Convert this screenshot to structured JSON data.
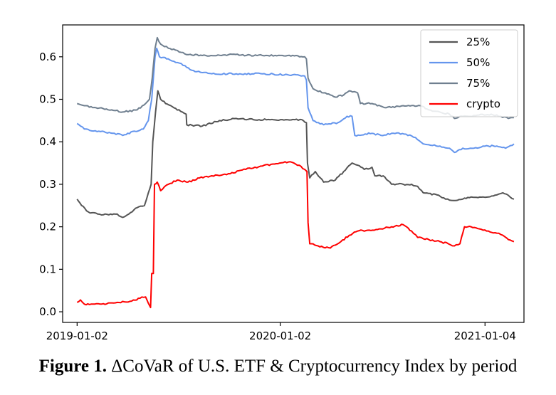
{
  "caption": {
    "label": "Figure 1.",
    "text": "ΔCoVaR of U.S. ETF & Cryptocurrency Index by period"
  },
  "chart_data": {
    "type": "line",
    "x_type": "date",
    "xlim": [
      "2018-12-07",
      "2021-03-15"
    ],
    "ylim": [
      -0.025,
      0.675
    ],
    "x_ticks": [
      {
        "value": "2019-01-02",
        "label": "2019-01-02"
      },
      {
        "value": "2020-01-02",
        "label": "2020-01-02"
      },
      {
        "value": "2021-01-04",
        "label": "2021-01-04"
      }
    ],
    "y_ticks": [
      {
        "value": 0.0,
        "label": "0.0"
      },
      {
        "value": 0.1,
        "label": "0.1"
      },
      {
        "value": 0.2,
        "label": "0.2"
      },
      {
        "value": 0.3,
        "label": "0.3"
      },
      {
        "value": 0.4,
        "label": "0.4"
      },
      {
        "value": 0.5,
        "label": "0.5"
      },
      {
        "value": 0.6,
        "label": "0.6"
      }
    ],
    "legend_position": "top-right",
    "grid": false,
    "series": [
      {
        "name": "25%",
        "color": "#555555",
        "points": [
          [
            "2019-01-02",
            0.265
          ],
          [
            "2019-01-10",
            0.25
          ],
          [
            "2019-01-22",
            0.235
          ],
          [
            "2019-02-08",
            0.23
          ],
          [
            "2019-02-28",
            0.228
          ],
          [
            "2019-03-15",
            0.23
          ],
          [
            "2019-03-25",
            0.222
          ],
          [
            "2019-04-05",
            0.23
          ],
          [
            "2019-04-20",
            0.245
          ],
          [
            "2019-05-03",
            0.25
          ],
          [
            "2019-05-10",
            0.28
          ],
          [
            "2019-05-15",
            0.3
          ],
          [
            "2019-05-18",
            0.4
          ],
          [
            "2019-05-23",
            0.47
          ],
          [
            "2019-05-27",
            0.52
          ],
          [
            "2019-06-01",
            0.5
          ],
          [
            "2019-06-10",
            0.49
          ],
          [
            "2019-06-25",
            0.48
          ],
          [
            "2019-07-10",
            0.47
          ],
          [
            "2019-07-17",
            0.465
          ],
          [
            "2019-07-18",
            0.44
          ],
          [
            "2019-08-15",
            0.437
          ],
          [
            "2019-09-15",
            0.45
          ],
          [
            "2019-10-15",
            0.455
          ],
          [
            "2019-11-15",
            0.452
          ],
          [
            "2019-12-15",
            0.452
          ],
          [
            "2020-01-15",
            0.452
          ],
          [
            "2020-02-10",
            0.452
          ],
          [
            "2020-02-18",
            0.445
          ],
          [
            "2020-02-20",
            0.35
          ],
          [
            "2020-02-24",
            0.315
          ],
          [
            "2020-03-05",
            0.33
          ],
          [
            "2020-03-20",
            0.305
          ],
          [
            "2020-04-10",
            0.31
          ],
          [
            "2020-04-25",
            0.33
          ],
          [
            "2020-05-10",
            0.35
          ],
          [
            "2020-05-20",
            0.345
          ],
          [
            "2020-06-01",
            0.335
          ],
          [
            "2020-06-15",
            0.34
          ],
          [
            "2020-06-20",
            0.32
          ],
          [
            "2020-07-05",
            0.32
          ],
          [
            "2020-07-20",
            0.3
          ],
          [
            "2020-08-10",
            0.3
          ],
          [
            "2020-08-25",
            0.3
          ],
          [
            "2020-09-05",
            0.295
          ],
          [
            "2020-09-15",
            0.28
          ],
          [
            "2020-10-10",
            0.275
          ],
          [
            "2020-10-25",
            0.265
          ],
          [
            "2020-11-05",
            0.262
          ],
          [
            "2020-11-25",
            0.265
          ],
          [
            "2020-12-10",
            0.27
          ],
          [
            "2021-01-10",
            0.27
          ],
          [
            "2021-01-25",
            0.275
          ],
          [
            "2021-02-05",
            0.28
          ],
          [
            "2021-02-18",
            0.27
          ],
          [
            "2021-02-25",
            0.265
          ]
        ]
      },
      {
        "name": "50%",
        "color": "#6495ed",
        "points": [
          [
            "2019-01-02",
            0.443
          ],
          [
            "2019-01-15",
            0.43
          ],
          [
            "2019-02-10",
            0.425
          ],
          [
            "2019-03-10",
            0.42
          ],
          [
            "2019-03-25",
            0.415
          ],
          [
            "2019-04-15",
            0.425
          ],
          [
            "2019-05-01",
            0.43
          ],
          [
            "2019-05-10",
            0.45
          ],
          [
            "2019-05-16",
            0.5
          ],
          [
            "2019-05-22",
            0.6
          ],
          [
            "2019-05-25",
            0.62
          ],
          [
            "2019-05-30",
            0.6
          ],
          [
            "2019-06-15",
            0.595
          ],
          [
            "2019-07-05",
            0.585
          ],
          [
            "2019-07-18",
            0.575
          ],
          [
            "2019-08-05",
            0.565
          ],
          [
            "2019-09-01",
            0.56
          ],
          [
            "2019-10-15",
            0.56
          ],
          [
            "2019-12-01",
            0.56
          ],
          [
            "2020-01-15",
            0.558
          ],
          [
            "2020-02-15",
            0.555
          ],
          [
            "2020-02-18",
            0.545
          ],
          [
            "2020-02-21",
            0.48
          ],
          [
            "2020-03-01",
            0.45
          ],
          [
            "2020-03-20",
            0.44
          ],
          [
            "2020-04-15",
            0.445
          ],
          [
            "2020-05-01",
            0.46
          ],
          [
            "2020-05-10",
            0.46
          ],
          [
            "2020-05-15",
            0.415
          ],
          [
            "2020-06-15",
            0.42
          ],
          [
            "2020-07-01",
            0.415
          ],
          [
            "2020-07-20",
            0.42
          ],
          [
            "2020-08-15",
            0.418
          ],
          [
            "2020-09-01",
            0.41
          ],
          [
            "2020-09-15",
            0.395
          ],
          [
            "2020-10-15",
            0.39
          ],
          [
            "2020-11-01",
            0.385
          ],
          [
            "2020-11-10",
            0.375
          ],
          [
            "2020-11-25",
            0.385
          ],
          [
            "2020-12-15",
            0.385
          ],
          [
            "2021-01-10",
            0.39
          ],
          [
            "2021-01-25",
            0.39
          ],
          [
            "2021-02-10",
            0.385
          ],
          [
            "2021-02-25",
            0.395
          ]
        ]
      },
      {
        "name": "75%",
        "color": "#6f7f8f",
        "points": [
          [
            "2019-01-02",
            0.49
          ],
          [
            "2019-01-15",
            0.485
          ],
          [
            "2019-02-05",
            0.48
          ],
          [
            "2019-03-05",
            0.475
          ],
          [
            "2019-03-25",
            0.47
          ],
          [
            "2019-04-20",
            0.475
          ],
          [
            "2019-05-05",
            0.49
          ],
          [
            "2019-05-12",
            0.5
          ],
          [
            "2019-05-17",
            0.55
          ],
          [
            "2019-05-22",
            0.62
          ],
          [
            "2019-05-26",
            0.645
          ],
          [
            "2019-06-01",
            0.63
          ],
          [
            "2019-06-15",
            0.62
          ],
          [
            "2019-07-01",
            0.615
          ],
          [
            "2019-07-18",
            0.605
          ],
          [
            "2019-08-15",
            0.603
          ],
          [
            "2019-10-01",
            0.605
          ],
          [
            "2019-12-01",
            0.603
          ],
          [
            "2020-01-15",
            0.603
          ],
          [
            "2020-02-15",
            0.6
          ],
          [
            "2020-02-18",
            0.595
          ],
          [
            "2020-02-21",
            0.55
          ],
          [
            "2020-03-01",
            0.525
          ],
          [
            "2020-03-20",
            0.515
          ],
          [
            "2020-04-10",
            0.505
          ],
          [
            "2020-04-25",
            0.51
          ],
          [
            "2020-05-05",
            0.52
          ],
          [
            "2020-05-20",
            0.515
          ],
          [
            "2020-05-25",
            0.49
          ],
          [
            "2020-06-15",
            0.49
          ],
          [
            "2020-07-10",
            0.48
          ],
          [
            "2020-08-10",
            0.485
          ],
          [
            "2020-09-10",
            0.485
          ],
          [
            "2020-09-25",
            0.475
          ],
          [
            "2020-10-15",
            0.47
          ],
          [
            "2020-11-01",
            0.465
          ],
          [
            "2020-11-10",
            0.455
          ],
          [
            "2020-11-25",
            0.46
          ],
          [
            "2020-12-15",
            0.462
          ],
          [
            "2021-01-15",
            0.465
          ],
          [
            "2021-02-01",
            0.46
          ],
          [
            "2021-02-15",
            0.455
          ],
          [
            "2021-02-25",
            0.457
          ]
        ]
      },
      {
        "name": "crypto",
        "color": "#ff0000",
        "points": [
          [
            "2019-01-02",
            0.022
          ],
          [
            "2019-01-08",
            0.028
          ],
          [
            "2019-01-15",
            0.018
          ],
          [
            "2019-02-15",
            0.018
          ],
          [
            "2019-03-15",
            0.022
          ],
          [
            "2019-04-10",
            0.025
          ],
          [
            "2019-04-25",
            0.032
          ],
          [
            "2019-05-05",
            0.035
          ],
          [
            "2019-05-10",
            0.02
          ],
          [
            "2019-05-14",
            0.01
          ],
          [
            "2019-05-16",
            0.09
          ],
          [
            "2019-05-19",
            0.09
          ],
          [
            "2019-05-21",
            0.3
          ],
          [
            "2019-05-26",
            0.305
          ],
          [
            "2019-06-01",
            0.285
          ],
          [
            "2019-06-15",
            0.3
          ],
          [
            "2019-07-01",
            0.31
          ],
          [
            "2019-07-20",
            0.305
          ],
          [
            "2019-08-10",
            0.315
          ],
          [
            "2019-09-01",
            0.32
          ],
          [
            "2019-10-01",
            0.325
          ],
          [
            "2019-11-01",
            0.335
          ],
          [
            "2019-12-01",
            0.343
          ],
          [
            "2020-01-01",
            0.35
          ],
          [
            "2020-01-20",
            0.353
          ],
          [
            "2020-02-05",
            0.345
          ],
          [
            "2020-02-15",
            0.335
          ],
          [
            "2020-02-19",
            0.33
          ],
          [
            "2020-02-21",
            0.21
          ],
          [
            "2020-02-24",
            0.16
          ],
          [
            "2020-03-10",
            0.155
          ],
          [
            "2020-04-01",
            0.15
          ],
          [
            "2020-04-20",
            0.165
          ],
          [
            "2020-05-05",
            0.18
          ],
          [
            "2020-05-20",
            0.19
          ],
          [
            "2020-06-10",
            0.192
          ],
          [
            "2020-07-01",
            0.195
          ],
          [
            "2020-07-20",
            0.2
          ],
          [
            "2020-08-10",
            0.205
          ],
          [
            "2020-08-25",
            0.19
          ],
          [
            "2020-09-05",
            0.175
          ],
          [
            "2020-09-25",
            0.17
          ],
          [
            "2020-10-15",
            0.165
          ],
          [
            "2020-10-30",
            0.16
          ],
          [
            "2020-11-10",
            0.155
          ],
          [
            "2020-11-20",
            0.16
          ],
          [
            "2020-11-28",
            0.2
          ],
          [
            "2020-12-10",
            0.2
          ],
          [
            "2020-12-25",
            0.195
          ],
          [
            "2021-01-10",
            0.19
          ],
          [
            "2021-01-25",
            0.185
          ],
          [
            "2021-02-05",
            0.18
          ],
          [
            "2021-02-15",
            0.17
          ],
          [
            "2021-02-25",
            0.165
          ]
        ]
      }
    ]
  }
}
